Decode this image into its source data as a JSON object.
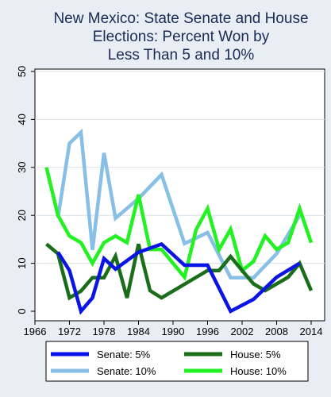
{
  "chart_data": {
    "type": "line",
    "title_lines": [
      "New Mexico: State Senate and House",
      "Elections: Percent Won by",
      "Less Than 5 and 10%"
    ],
    "xlabel": "",
    "ylabel": "",
    "xlim": [
      1966,
      2014
    ],
    "ylim": [
      0,
      50
    ],
    "x_ticks": [
      1966,
      1972,
      1978,
      1984,
      1990,
      1996,
      2002,
      2008,
      2014
    ],
    "y_ticks": [
      0,
      10,
      20,
      30,
      40,
      50
    ],
    "grid": "horizontal",
    "legend_position": "bottom",
    "series": [
      {
        "name": "Senate: 5%",
        "color": "#0a14e6",
        "points": [
          [
            1970,
            12.3
          ],
          [
            1972,
            8.5
          ],
          [
            1974,
            0
          ],
          [
            1976,
            2.8
          ],
          [
            1978,
            11
          ],
          [
            1980,
            8.8
          ],
          [
            1984,
            12.3
          ],
          [
            1988,
            14
          ],
          [
            1992,
            9.6
          ],
          [
            1996,
            9.6
          ],
          [
            2000,
            0
          ],
          [
            2004,
            2.5
          ],
          [
            2008,
            7.1
          ],
          [
            2012,
            10
          ]
        ]
      },
      {
        "name": "House: 5%",
        "color": "#1a6e1a",
        "points": [
          [
            1968,
            14
          ],
          [
            1970,
            12
          ],
          [
            1972,
            2.8
          ],
          [
            1974,
            4.2
          ],
          [
            1976,
            7
          ],
          [
            1978,
            7
          ],
          [
            1980,
            11.5
          ],
          [
            1982,
            2.8
          ],
          [
            1984,
            14
          ],
          [
            1986,
            4.3
          ],
          [
            1988,
            2.8
          ],
          [
            1996,
            8.5
          ],
          [
            1998,
            8.5
          ],
          [
            2000,
            11.4
          ],
          [
            2002,
            8.5
          ],
          [
            2004,
            5.7
          ],
          [
            2006,
            4.3
          ],
          [
            2010,
            7.1
          ],
          [
            2012,
            10
          ],
          [
            2014,
            4.3
          ]
        ]
      },
      {
        "name": "Senate: 10%",
        "color": "#87bfe6",
        "points": [
          [
            1970,
            19.5
          ],
          [
            1972,
            35
          ],
          [
            1974,
            37.3
          ],
          [
            1976,
            12.8
          ],
          [
            1978,
            33
          ],
          [
            1980,
            19.4
          ],
          [
            1984,
            23.5
          ],
          [
            1988,
            28.5
          ],
          [
            1992,
            14.1
          ],
          [
            1996,
            16.4
          ],
          [
            2000,
            7
          ],
          [
            2004,
            7
          ],
          [
            2008,
            12
          ],
          [
            2012,
            20
          ]
        ]
      },
      {
        "name": "House: 10%",
        "color": "#22f222",
        "points": [
          [
            1968,
            30
          ],
          [
            1970,
            20
          ],
          [
            1972,
            15.7
          ],
          [
            1974,
            14.3
          ],
          [
            1976,
            10
          ],
          [
            1978,
            14.3
          ],
          [
            1980,
            15.7
          ],
          [
            1982,
            14.3
          ],
          [
            1984,
            24.3
          ],
          [
            1986,
            12.9
          ],
          [
            1988,
            12.9
          ],
          [
            1990,
            10
          ],
          [
            1992,
            7.1
          ],
          [
            1994,
            17
          ],
          [
            1996,
            21.4
          ],
          [
            1998,
            12.9
          ],
          [
            2000,
            17.1
          ],
          [
            2002,
            8.5
          ],
          [
            2004,
            10.4
          ],
          [
            2006,
            15.7
          ],
          [
            2008,
            12.9
          ],
          [
            2010,
            14.3
          ],
          [
            2012,
            21.4
          ],
          [
            2014,
            14.3
          ]
        ]
      }
    ],
    "legend_order": [
      "Senate: 5%",
      "House: 5%",
      "Senate: 10%",
      "House: 10%"
    ]
  }
}
